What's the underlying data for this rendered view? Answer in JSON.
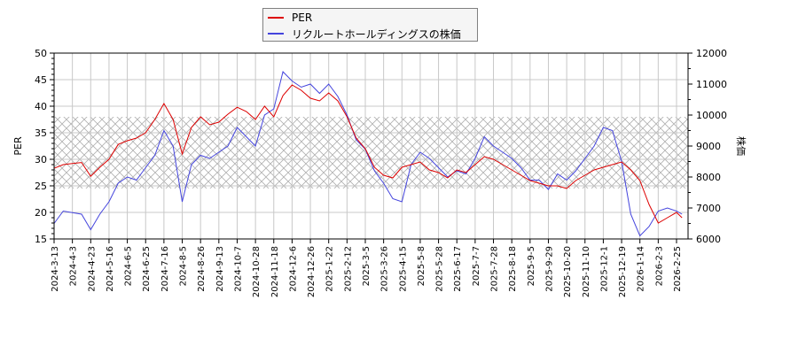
{
  "chart_data": {
    "type": "line",
    "title": "",
    "legend": [
      {
        "name": "PER",
        "color": "#dd0000"
      },
      {
        "name": "リクルートホールディングスの株価",
        "color": "#4444dd"
      }
    ],
    "ylabel": "PER",
    "ylabel_right": "株価",
    "ylim": [
      15,
      50
    ],
    "ylim_right": [
      6000,
      12000
    ],
    "yticks": [
      15,
      20,
      25,
      30,
      35,
      40,
      45,
      50
    ],
    "yticks_right": [
      6000,
      7000,
      8000,
      9000,
      10000,
      11000,
      12000
    ],
    "x_ticks": [
      "2024-3-13",
      "2024-4-3",
      "2024-4-23",
      "2024-5-16",
      "2024-6-5",
      "2024-6-25",
      "2024-7-16",
      "2024-8-5",
      "2024-8-26",
      "2024-9-13",
      "2024-10-7",
      "2024-10-28",
      "2024-11-18",
      "2024-12-6",
      "2024-12-26",
      "2025-1-22",
      "2025-2-12",
      "2025-3-5",
      "2025-3-26",
      "2025-4-15",
      "2025-5-8",
      "2025-5-28",
      "2025-6-17",
      "2025-7-7",
      "2025-7-28",
      "2025-8-18",
      "2025-9-5",
      "2025-9-29",
      "2025-10-20",
      "2025-11-10",
      "2025-12-1",
      "2025-12-19",
      "2026-1-14",
      "2026-2-3",
      "2026-2-25"
    ],
    "shaded_band": {
      "per_from": 24.7,
      "per_to": 38.0
    },
    "grid": true,
    "series": [
      {
        "name": "PER",
        "axis": "left",
        "color": "#dd0000",
        "x_index": [
          0,
          0.5,
          1,
          1.5,
          2,
          2.5,
          3,
          3.5,
          4,
          4.5,
          5,
          5.5,
          6,
          6.5,
          7,
          7.5,
          8,
          8.5,
          9,
          9.5,
          10,
          10.5,
          11,
          11.5,
          12,
          12.5,
          13,
          13.5,
          14,
          14.5,
          15,
          15.5,
          16,
          16.5,
          17,
          17.5,
          18,
          18.5,
          19,
          19.5,
          20,
          20.5,
          21,
          21.5,
          22,
          22.5,
          23,
          23.5,
          24,
          24.5,
          25,
          25.5,
          26,
          26.5,
          27,
          27.5,
          28,
          28.5,
          29,
          29.5,
          30,
          30.5,
          31,
          31.5,
          32,
          32.5,
          33,
          33.5,
          34,
          34.3
        ],
        "values": [
          28.3,
          29.0,
          29.2,
          29.4,
          26.8,
          28.5,
          30.0,
          32.8,
          33.5,
          34.0,
          35.0,
          37.5,
          40.5,
          37.5,
          31.0,
          36.0,
          38.0,
          36.5,
          37.0,
          38.5,
          39.8,
          39.0,
          37.5,
          40.0,
          38.0,
          42.0,
          44.0,
          43.0,
          41.5,
          41.0,
          42.5,
          41.0,
          38.0,
          34.0,
          32.0,
          28.5,
          27.0,
          26.5,
          28.5,
          29.0,
          29.5,
          28.0,
          27.5,
          26.5,
          28.0,
          27.5,
          29.0,
          30.5,
          30.0,
          29.0,
          28.0,
          27.0,
          26.0,
          25.5,
          25.0,
          25.0,
          24.5,
          26.0,
          27.0,
          28.0,
          28.5,
          29.0,
          29.5,
          28.0,
          26.0,
          21.5,
          18.0,
          19.0,
          20.0,
          19.0
        ]
      },
      {
        "name": "リクルートホールディングスの株価",
        "axis": "right",
        "color": "#4444dd",
        "x_index": [
          0,
          0.5,
          1,
          1.5,
          2,
          2.5,
          3,
          3.5,
          4,
          4.5,
          5,
          5.5,
          6,
          6.5,
          7,
          7.5,
          8,
          8.5,
          9,
          9.5,
          10,
          10.5,
          11,
          11.5,
          12,
          12.5,
          13,
          13.5,
          14,
          14.5,
          15,
          15.5,
          16,
          16.5,
          17,
          17.5,
          18,
          18.5,
          19,
          19.5,
          20,
          20.5,
          21,
          21.5,
          22,
          22.5,
          23,
          23.5,
          24,
          24.5,
          25,
          25.5,
          26,
          26.5,
          27,
          27.5,
          28,
          28.5,
          29,
          29.5,
          30,
          30.5,
          31,
          31.5,
          32,
          32.5,
          33,
          33.5,
          34,
          34.3
        ],
        "values": [
          6500,
          6900,
          6850,
          6800,
          6300,
          6800,
          7200,
          7800,
          8000,
          7900,
          8300,
          8700,
          9500,
          9000,
          7200,
          8400,
          8700,
          8600,
          8800,
          9000,
          9600,
          9300,
          9000,
          10000,
          10200,
          11400,
          11100,
          10900,
          11000,
          10700,
          11000,
          10600,
          10000,
          9200,
          8900,
          8200,
          7800,
          7300,
          7200,
          8400,
          8800,
          8600,
          8300,
          8000,
          8200,
          8100,
          8600,
          9300,
          9000,
          8800,
          8600,
          8300,
          7900,
          7900,
          7600,
          8100,
          7900,
          8200,
          8600,
          9000,
          9600,
          9500,
          8500,
          6800,
          6100,
          6400,
          6900,
          7000,
          6900,
          6800
        ]
      }
    ]
  }
}
